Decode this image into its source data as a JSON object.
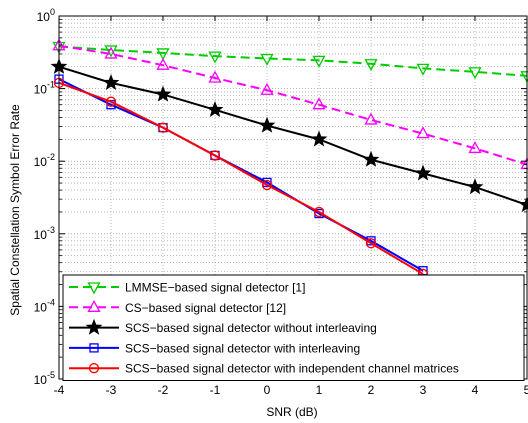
{
  "chart_data": {
    "type": "line",
    "xlabel": "SNR (dB)",
    "ylabel": "Spatial Constellation Symbol Error Rate",
    "x": [
      -4,
      -3,
      -2,
      -1,
      0,
      1,
      2,
      3,
      4,
      5
    ],
    "xlim": [
      -4,
      5
    ],
    "ylim": [
      1e-05,
      1
    ],
    "yscale": "log",
    "grid": true,
    "legend_position": "bottom-left",
    "x_tick_labels": [
      "-4",
      "-3",
      "-2",
      "-1",
      "0",
      "1",
      "2",
      "3",
      "4",
      "5"
    ],
    "y_tick_labels": [
      {
        "base": "10",
        "exp": "0",
        "value": 1
      },
      {
        "base": "10",
        "exp": "-1",
        "value": 0.1
      },
      {
        "base": "10",
        "exp": "-2",
        "value": 0.01
      },
      {
        "base": "10",
        "exp": "-3",
        "value": 0.001
      },
      {
        "base": "10",
        "exp": "-4",
        "value": 0.0001
      },
      {
        "base": "10",
        "exp": "-5",
        "value": 1e-05
      }
    ],
    "series": [
      {
        "name": "LMMSE−based signal detector [1]",
        "color": "#00cc00",
        "dash": "dashed",
        "marker": "triangle-down",
        "values": [
          0.38,
          0.34,
          0.31,
          0.28,
          0.26,
          0.245,
          0.22,
          0.19,
          0.17,
          0.15
        ]
      },
      {
        "name": "CS−based signal detector [12]",
        "color": "#ff00ff",
        "dash": "dashed",
        "marker": "triangle-up",
        "values": [
          0.39,
          0.3,
          0.21,
          0.14,
          0.095,
          0.06,
          0.037,
          0.024,
          0.015,
          0.009
        ]
      },
      {
        "name": "SCS−based signal detector without interleaving",
        "color": "#000000",
        "dash": "solid",
        "marker": "star",
        "values": [
          0.2,
          0.12,
          0.083,
          0.051,
          0.031,
          0.02,
          0.0105,
          0.0068,
          0.0044,
          0.0025
        ]
      },
      {
        "name": "SCS−based signal detector with interleaving",
        "color": "#0000ff",
        "dash": "solid",
        "marker": "square",
        "values": [
          0.135,
          0.06,
          0.029,
          0.012,
          0.0051,
          0.0019,
          0.0008,
          0.00031,
          null,
          null
        ]
      },
      {
        "name": "SCS−based signal detector with independent channel matrices",
        "color": "#ff0000",
        "dash": "solid",
        "marker": "circle",
        "values": [
          0.12,
          0.066,
          0.029,
          0.012,
          0.0047,
          0.002,
          0.00074,
          0.00028,
          null,
          null
        ]
      }
    ]
  }
}
